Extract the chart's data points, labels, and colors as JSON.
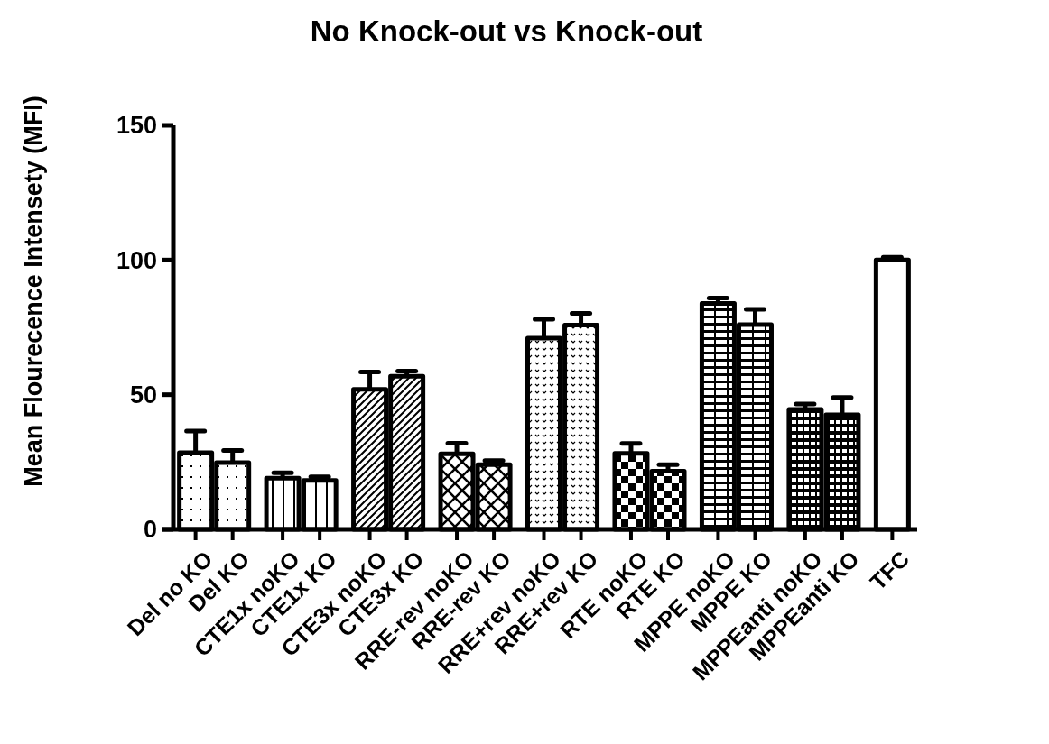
{
  "chart_data": {
    "type": "bar",
    "title": "No Knock-out vs Knock-out",
    "ylabel": "Mean Flourecence Intensety  (MFI)",
    "categories": [
      "Del no KO",
      "Del KO",
      "CTE1x noKO",
      "CTE1x KO",
      "CTE3x noKO",
      "CTE3x KO",
      "RRE-rev noKO",
      "RRE-rev KO",
      "RRE+rev noKO",
      "RRE+rev KO",
      "RTE noKO",
      "RTE KO",
      "MPPE noKO",
      "MPPE KO",
      "MPPEanti noKO",
      "MPPEanti KO",
      "TFC"
    ],
    "values": [
      28.5,
      24.8,
      19,
      18.2,
      52,
      56.8,
      28,
      24,
      71,
      75.8,
      28.2,
      21.6,
      83.9,
      76,
      44.5,
      42.5,
      100
    ],
    "errors": [
      8,
      4.5,
      2,
      1.3,
      6.4,
      2,
      4,
      1.5,
      7,
      4.4,
      3.7,
      2.4,
      2,
      5.7,
      2,
      6.5,
      1
    ],
    "color": "#000000",
    "ylim": [
      0,
      150
    ],
    "yticks": [
      0,
      50,
      100,
      150
    ],
    "grid": false
  }
}
